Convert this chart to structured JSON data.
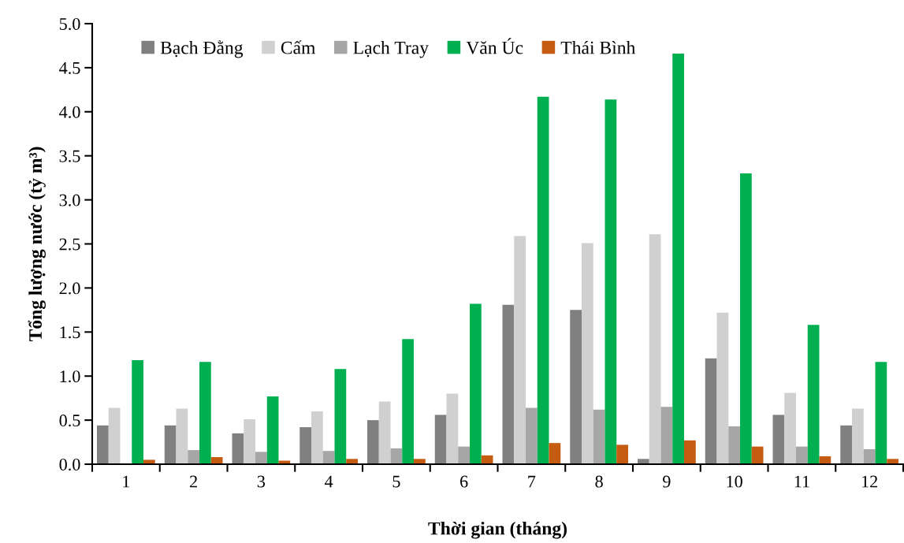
{
  "chart_data": {
    "type": "bar",
    "xlabel": "Thời gian (tháng)",
    "ylabel": "Tổng lượng nước (tỷ m³)",
    "categories": [
      "1",
      "2",
      "3",
      "4",
      "5",
      "6",
      "7",
      "8",
      "9",
      "10",
      "11",
      "12"
    ],
    "series": [
      {
        "name": "Bạch Đằng",
        "color": "#808080",
        "values": [
          0.44,
          0.44,
          0.35,
          0.42,
          0.5,
          0.56,
          1.81,
          1.75,
          0.06,
          1.2,
          0.56,
          0.44
        ]
      },
      {
        "name": "Cấm",
        "color": "#d0d0d0",
        "values": [
          0.64,
          0.63,
          0.51,
          0.6,
          0.71,
          0.8,
          2.59,
          2.51,
          2.61,
          1.72,
          0.81,
          0.63
        ]
      },
      {
        "name": "Lạch Tray",
        "color": "#a6a6a6",
        "values": [
          null,
          0.16,
          0.14,
          0.15,
          0.18,
          0.2,
          0.64,
          0.62,
          0.65,
          0.43,
          0.2,
          0.17
        ]
      },
      {
        "name": "Văn Úc",
        "color": "#00b050",
        "values": [
          1.18,
          1.16,
          0.77,
          1.08,
          1.42,
          1.82,
          4.17,
          4.14,
          4.66,
          3.3,
          1.58,
          1.16
        ]
      },
      {
        "name": "Thái Bình",
        "color": "#c55a11",
        "values": [
          0.05,
          0.08,
          0.04,
          0.06,
          0.06,
          0.1,
          0.24,
          0.22,
          0.27,
          0.2,
          0.09,
          0.06
        ]
      }
    ],
    "ylim": [
      0.0,
      5.0
    ],
    "yticks": [
      {
        "value": 0,
        "label": "0.0"
      },
      {
        "value": 0.5,
        "label": "0.5"
      },
      {
        "value": 1,
        "label": "1.0"
      },
      {
        "value": 1.5,
        "label": "1.5"
      },
      {
        "value": 2,
        "label": "2.0"
      },
      {
        "value": 2.5,
        "label": "2.5"
      },
      {
        "value": 3,
        "label": "3.0"
      },
      {
        "value": 3.5,
        "label": "3.5"
      },
      {
        "value": 4,
        "label": "4.0"
      },
      {
        "value": 4.5,
        "label": "4.5"
      },
      {
        "value": 5,
        "label": "5.0"
      }
    ],
    "grid": false,
    "legend": "top left"
  }
}
